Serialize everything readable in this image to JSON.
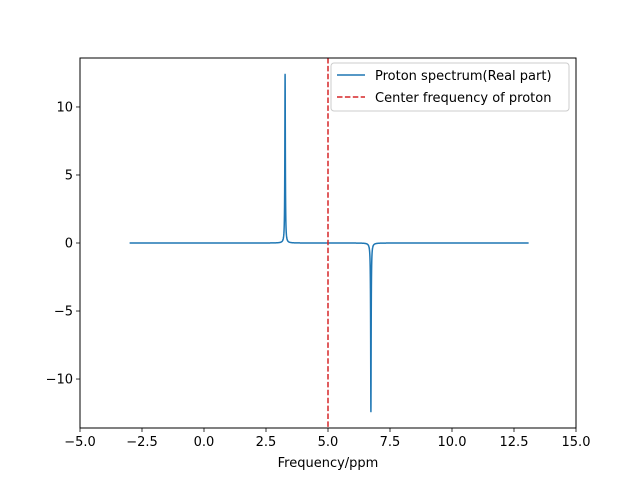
{
  "chart_data": {
    "type": "line",
    "title": "",
    "xlabel": "Frequency/ppm",
    "ylabel": "",
    "xlim": [
      -5.0,
      15.0
    ],
    "ylim": [
      -13.6,
      13.6
    ],
    "x_ticks": [
      -5.0,
      -2.5,
      0.0,
      2.5,
      5.0,
      7.5,
      10.0,
      12.5,
      15.0
    ],
    "x_tick_labels": [
      "−5.0",
      "−2.5",
      "0.0",
      "2.5",
      "5.0",
      "7.5",
      "10.0",
      "12.5",
      "15.0"
    ],
    "y_ticks": [
      -10,
      -5,
      0,
      5,
      10
    ],
    "y_tick_labels": [
      "−10",
      "−5",
      "0",
      "5",
      "10"
    ],
    "grid": false,
    "legend_position": "top-right",
    "series": [
      {
        "name": "Proton spectrum(Real part)",
        "color": "#1f77b4",
        "style": "solid",
        "x_range": [
          -3.0,
          13.1
        ],
        "baseline": 0.0,
        "peaks": [
          {
            "center": 3.27,
            "amplitude": 12.4,
            "width": 0.012
          },
          {
            "center": 6.73,
            "amplitude": -12.4,
            "width": 0.012
          }
        ]
      },
      {
        "name": "Center frequency of proton",
        "color": "#d62728",
        "style": "dashed",
        "x": 5.0
      }
    ]
  }
}
